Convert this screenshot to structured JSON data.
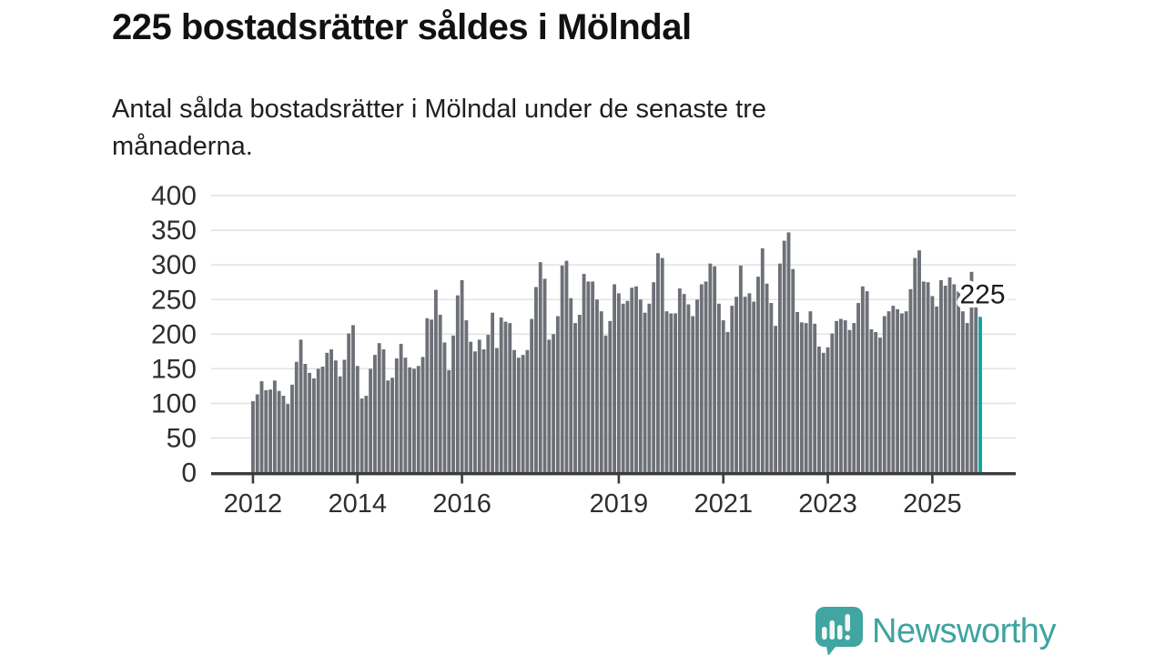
{
  "chart_data": {
    "type": "bar",
    "title": "225 bostadsrätter såldes i Mölndal",
    "subtitle": "Antal sålda bostadsrätter i Mölndal under de senaste tre\nmånaderna.",
    "frequency": "monthly",
    "x_start": "2012-01",
    "x_end": "2025-12",
    "values": [
      103,
      113,
      132,
      119,
      120,
      133,
      118,
      111,
      99,
      127,
      160,
      192,
      157,
      144,
      136,
      150,
      153,
      173,
      178,
      162,
      139,
      163,
      201,
      213,
      154,
      107,
      111,
      150,
      170,
      187,
      178,
      133,
      137,
      165,
      186,
      166,
      152,
      150,
      154,
      167,
      223,
      221,
      264,
      228,
      188,
      148,
      198,
      256,
      278,
      220,
      189,
      175,
      192,
      178,
      199,
      231,
      180,
      224,
      218,
      216,
      177,
      166,
      170,
      177,
      222,
      268,
      304,
      280,
      192,
      200,
      226,
      299,
      306,
      252,
      216,
      228,
      287,
      276,
      276,
      250,
      233,
      198,
      219,
      272,
      259,
      244,
      248,
      267,
      269,
      250,
      231,
      244,
      275,
      317,
      310,
      233,
      230,
      230,
      266,
      258,
      243,
      226,
      250,
      272,
      276,
      302,
      298,
      244,
      220,
      203,
      241,
      254,
      299,
      254,
      259,
      247,
      283,
      324,
      273,
      245,
      212,
      302,
      335,
      347,
      294,
      232,
      217,
      216,
      233,
      215,
      182,
      173,
      181,
      201,
      219,
      222,
      220,
      206,
      216,
      245,
      269,
      262,
      207,
      203,
      195,
      226,
      233,
      241,
      236,
      230,
      233,
      265,
      310,
      321,
      276,
      275,
      255,
      240,
      278,
      270,
      282,
      272,
      262,
      233,
      216,
      290,
      240,
      225
    ],
    "highlight": {
      "index": 167,
      "value": 225,
      "label": "225"
    },
    "ylim": [
      0,
      400
    ],
    "y_ticks": [
      "0",
      "50",
      "100",
      "150",
      "200",
      "250",
      "300",
      "350",
      "400"
    ],
    "x_tick_labels": [
      "2012",
      "2014",
      "2016",
      "2019",
      "2021",
      "2023",
      "2025"
    ],
    "grid": "horizontal",
    "legend": "none",
    "colors": {
      "bar": "#6d7077",
      "highlight": "#10a3a0",
      "axis": "#3b3b3b",
      "gridline": "#e3e3e3",
      "axis_text": "#2e2e2e",
      "annotation_text": "#1c1c1c"
    }
  },
  "branding": {
    "logo_text": "Newsworthy",
    "logo_color": "#41a5a1",
    "logo_text_color": "#3da49f",
    "logo_icon": "speech-bubble-bar-chart"
  }
}
